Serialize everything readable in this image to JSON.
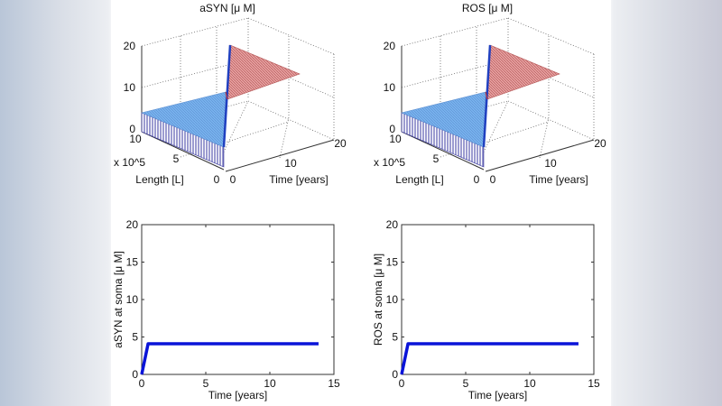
{
  "chart_data": [
    {
      "type": "surface3d",
      "title": "aSYN [μ M]",
      "xlabel": "Time [years]",
      "ylabel": "Length [L]",
      "ylabel_multiplier": "x 10^5",
      "x_ticks": [
        "0",
        "10",
        "20"
      ],
      "y_ticks": [
        "0",
        "5",
        "10"
      ],
      "z_ticks": [
        "0",
        "10",
        "20"
      ],
      "xlim": [
        0,
        20
      ],
      "ylim": [
        0,
        10
      ],
      "zlim": [
        0,
        20
      ],
      "grid": true,
      "colors": {
        "low": "#6fa8e8",
        "high": "#d98080",
        "edge": "#3a3aa0"
      }
    },
    {
      "type": "surface3d",
      "title": "ROS [μ M]",
      "xlabel": "Time [years]",
      "ylabel": "Length [L]",
      "ylabel_multiplier": "x 10^5",
      "x_ticks": [
        "0",
        "10",
        "20"
      ],
      "y_ticks": [
        "0",
        "5",
        "10"
      ],
      "z_ticks": [
        "0",
        "10",
        "20"
      ],
      "xlim": [
        0,
        20
      ],
      "ylim": [
        0,
        10
      ],
      "zlim": [
        0,
        20
      ],
      "grid": true,
      "colors": {
        "low": "#6fa8e8",
        "high": "#d98080",
        "edge": "#3a3aa0"
      }
    },
    {
      "type": "line",
      "xlabel": "Time [years]",
      "ylabel": "aSYN at soma [μ M]",
      "xlim": [
        0,
        15
      ],
      "ylim": [
        0,
        20
      ],
      "x_ticks": [
        "0",
        "5",
        "10",
        "15"
      ],
      "y_ticks": [
        "0",
        "5",
        "10",
        "15",
        "20"
      ],
      "grid": false,
      "series": [
        {
          "x": [
            0,
            0.5,
            13.8
          ],
          "y": [
            0,
            4.1,
            4.1
          ],
          "color": "#0a14d8"
        }
      ]
    },
    {
      "type": "line",
      "xlabel": "Time [years]",
      "ylabel": "ROS at soma [μ M]",
      "xlim": [
        0,
        15
      ],
      "ylim": [
        0,
        20
      ],
      "x_ticks": [
        "0",
        "5",
        "10",
        "15"
      ],
      "y_ticks": [
        "0",
        "5",
        "10",
        "15",
        "20"
      ],
      "grid": false,
      "series": [
        {
          "x": [
            0,
            0.5,
            13.8
          ],
          "y": [
            0,
            4.1,
            4.1
          ],
          "color": "#0a14d8"
        }
      ]
    }
  ]
}
